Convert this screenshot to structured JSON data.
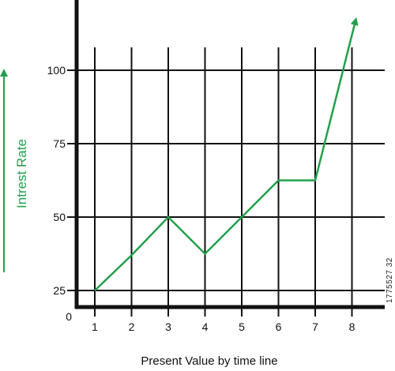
{
  "chart_data": {
    "type": "line",
    "title": "",
    "xlabel": "Present Value by time line",
    "ylabel": "Intrest Rate",
    "x_ticks": [
      "1",
      "2",
      "3",
      "4",
      "5",
      "6",
      "7",
      "8"
    ],
    "y_ticks": [
      "25",
      "50",
      "75",
      "100"
    ],
    "origin_label": "0",
    "xlim": [
      0,
      8.7
    ],
    "ylim": [
      20,
      115
    ],
    "grid": true,
    "series": [
      {
        "x": [
          1,
          2,
          3,
          4,
          5,
          6,
          7,
          8.1
        ],
        "y": [
          25,
          37,
          50,
          37.5,
          50,
          62.5,
          62.5,
          117
        ],
        "color": "#22a04b"
      }
    ]
  },
  "colors": {
    "line": "#22a04b",
    "axis": "#111111",
    "ylabel": "#22a04b"
  },
  "watermark_id": "1775527 32"
}
